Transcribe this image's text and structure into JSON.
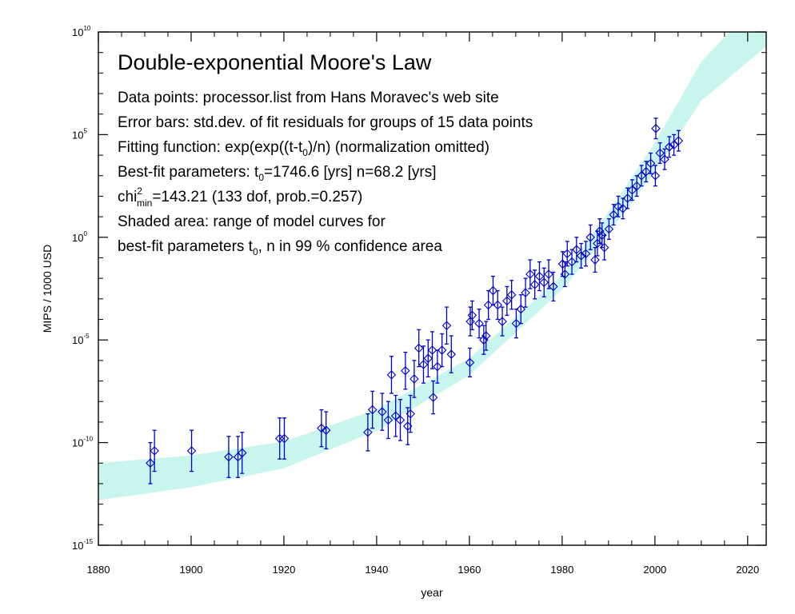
{
  "chart_data": {
    "type": "scatter",
    "title": "Double-exponential Moore's Law",
    "annotations": {
      "line1": "Data points: processor.list from Hans Moravec's web site",
      "line2": "Error bars: std.dev. of fit residuals for groups of 15 data points",
      "line3": {
        "prefix": "Fitting function: exp(exp((t-t",
        "sub": "0",
        "suffix": ")/n) (normalization omitted)"
      },
      "line4": {
        "prefix": "Best-fit parameters: t",
        "sub": "0",
        "suffix": "=1746.6 [yrs] n=68.2 [yrs]"
      },
      "line5": {
        "prefix": "chi",
        "sup": "2",
        "sub": "min",
        "suffix": "=143.21 (133 dof, prob.=0.257)"
      },
      "line6": "Shaded area: range of model curves for",
      "line7": {
        "prefix": "best-fit parameters t",
        "sub": "0",
        "suffix": ", n in 99 % confidence area"
      }
    },
    "xlabel": "year",
    "ylabel": "MIPS / 1000 USD",
    "xlim": [
      1880,
      2024
    ],
    "xticks": [
      "1880",
      "1900",
      "1920",
      "1940",
      "1960",
      "1980",
      "2000",
      "2020"
    ],
    "y_scale": "log",
    "ylim_exponent": [
      -15,
      10
    ],
    "yticks": [
      {
        "base": "10",
        "exp": "-15"
      },
      {
        "base": "10",
        "exp": "-10"
      },
      {
        "base": "10",
        "exp": "-5"
      },
      {
        "base": "10",
        "exp": "0"
      },
      {
        "base": "10",
        "exp": "5"
      },
      {
        "base": "10",
        "exp": "10"
      }
    ],
    "grid": false,
    "band": {
      "description": "model curve range",
      "color": "#c8f5ee",
      "center_log10": [
        [
          1880,
          -11.9
        ],
        [
          1900,
          -11.4
        ],
        [
          1920,
          -10.6
        ],
        [
          1940,
          -8.9
        ],
        [
          1960,
          -6.3
        ],
        [
          1980,
          -2.2
        ],
        [
          1990,
          0.7
        ],
        [
          2000,
          3.9
        ],
        [
          2010,
          7.6
        ],
        [
          2024,
          10.6
        ]
      ],
      "halfwidth_log10": [
        [
          1880,
          0.9
        ],
        [
          1920,
          0.65
        ],
        [
          1950,
          0.45
        ],
        [
          1980,
          0.35
        ],
        [
          2000,
          0.7
        ],
        [
          2024,
          1.3
        ]
      ]
    },
    "points_color": "#0000cc",
    "points_log10": [
      [
        1891.2,
        -11.0,
        1.0
      ],
      [
        1892.1,
        -10.4,
        1.0
      ],
      [
        1900.1,
        -10.4,
        1.0
      ],
      [
        1908.1,
        -10.7,
        1.0
      ],
      [
        1910.1,
        -10.7,
        1.0
      ],
      [
        1911.0,
        -10.5,
        1.0
      ],
      [
        1919.1,
        -9.8,
        1.0
      ],
      [
        1920.1,
        -9.8,
        1.0
      ],
      [
        1928.1,
        -9.3,
        0.9
      ],
      [
        1929.1,
        -9.4,
        0.9
      ],
      [
        1938.1,
        -9.5,
        0.9
      ],
      [
        1939.1,
        -8.4,
        0.9
      ],
      [
        1941.2,
        -8.5,
        0.9
      ],
      [
        1942.5,
        -8.9,
        0.9
      ],
      [
        1943.2,
        -6.7,
        0.9
      ],
      [
        1944.1,
        -8.7,
        1.0
      ],
      [
        1945.1,
        -8.9,
        1.0
      ],
      [
        1946.2,
        -6.5,
        0.9
      ],
      [
        1946.7,
        -9.2,
        0.9
      ],
      [
        1947.3,
        -8.6,
        0.9
      ],
      [
        1948.1,
        -6.9,
        0.9
      ],
      [
        1949.1,
        -5.4,
        0.9
      ],
      [
        1950.1,
        -6.2,
        0.9
      ],
      [
        1951.1,
        -5.9,
        0.9
      ],
      [
        1952.0,
        -5.5,
        0.9
      ],
      [
        1952.2,
        -7.8,
        0.8
      ],
      [
        1953.1,
        -6.3,
        0.8
      ],
      [
        1954.1,
        -5.5,
        0.8
      ],
      [
        1955.1,
        -4.3,
        0.9
      ],
      [
        1956.1,
        -5.7,
        0.9
      ],
      [
        1960.1,
        -6.1,
        0.7
      ],
      [
        1960.2,
        -4.1,
        0.7
      ],
      [
        1960.6,
        -3.8,
        0.7
      ],
      [
        1962.1,
        -4.2,
        0.7
      ],
      [
        1963.1,
        -5.0,
        0.7
      ],
      [
        1963.6,
        -4.8,
        0.7
      ],
      [
        1964.1,
        -3.3,
        0.7
      ],
      [
        1965.1,
        -2.6,
        0.7
      ],
      [
        1966.1,
        -3.3,
        0.7
      ],
      [
        1967.1,
        -4.1,
        0.7
      ],
      [
        1968.1,
        -3.1,
        0.7
      ],
      [
        1969.1,
        -2.8,
        0.7
      ],
      [
        1970.1,
        -4.2,
        0.7
      ],
      [
        1971.1,
        -3.5,
        0.7
      ],
      [
        1972.1,
        -2.7,
        0.7
      ],
      [
        1973.1,
        -1.8,
        0.7
      ],
      [
        1974.1,
        -2.3,
        0.7
      ],
      [
        1975.1,
        -1.9,
        0.7
      ],
      [
        1976.1,
        -2.2,
        0.7
      ],
      [
        1977.1,
        -1.8,
        0.7
      ],
      [
        1978.1,
        -2.4,
        0.7
      ],
      [
        1980.1,
        -1.3,
        0.6
      ],
      [
        1980.6,
        -1.8,
        0.6
      ],
      [
        1981.1,
        -0.8,
        0.6
      ],
      [
        1982.1,
        -1.2,
        0.6
      ],
      [
        1983.1,
        -0.6,
        0.6
      ],
      [
        1984.1,
        -0.9,
        0.6
      ],
      [
        1985.1,
        -0.8,
        0.6
      ],
      [
        1986.1,
        0.0,
        0.6
      ],
      [
        1987.1,
        -1.1,
        0.6
      ],
      [
        1987.6,
        -0.3,
        0.6
      ],
      [
        1988.1,
        0.3,
        0.6
      ],
      [
        1988.6,
        0.1,
        0.6
      ],
      [
        1989.1,
        -0.5,
        0.6
      ],
      [
        1990.1,
        0.4,
        0.5
      ],
      [
        1991.1,
        1.1,
        0.5
      ],
      [
        1992.1,
        1.5,
        0.5
      ],
      [
        1993.1,
        1.4,
        0.5
      ],
      [
        1994.1,
        1.9,
        0.5
      ],
      [
        1995.1,
        2.3,
        0.5
      ],
      [
        1996.1,
        2.5,
        0.5
      ],
      [
        1997.1,
        3.0,
        0.5
      ],
      [
        1998.1,
        3.2,
        0.5
      ],
      [
        1999.1,
        3.6,
        0.5
      ],
      [
        2000.1,
        3.0,
        0.5
      ],
      [
        2000.2,
        5.3,
        0.5
      ],
      [
        2001.1,
        4.1,
        0.5
      ],
      [
        2002.1,
        3.8,
        0.5
      ],
      [
        2003.1,
        4.4,
        0.5
      ],
      [
        2004.1,
        4.5,
        0.5
      ],
      [
        2005.1,
        4.7,
        0.5
      ]
    ]
  }
}
